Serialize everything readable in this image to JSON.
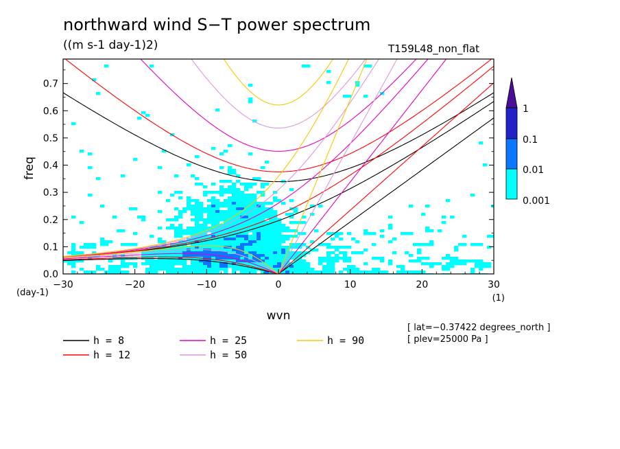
{
  "chart_data": {
    "type": "heatmap",
    "title": "northward wind S−T power spectrum",
    "units": "((m s-1 day-1)2)",
    "run_name": "T159L48_non_flat",
    "xlabel": "wvn",
    "ylabel": "freq",
    "x_unit": "(1)",
    "y_unit": "(day-1)",
    "xlim": [
      -30,
      30
    ],
    "ylim": [
      0,
      0.79
    ],
    "xticks": [
      -30,
      -20,
      -10,
      0,
      10,
      20,
      30
    ],
    "xtick_labels": [
      "−30",
      "−20",
      "−10",
      "0",
      "10",
      "20",
      "30"
    ],
    "yticks": [
      0,
      0.1,
      0.2,
      0.3,
      0.4,
      0.5,
      0.6,
      0.7
    ],
    "ytick_labels": [
      "0.0",
      "0.1",
      "0.2",
      "0.3",
      "0.4",
      "0.5",
      "0.6",
      "0.7"
    ],
    "color_levels": [
      {
        "label": "0.001",
        "color": "#00ffff"
      },
      {
        "label": "0.01",
        "color": "#0d76ff"
      },
      {
        "label": "0.1",
        "color": "#1f23c8"
      },
      {
        "label": "1",
        "color": "#4b0e98"
      }
    ],
    "dispersion_curves": [
      {
        "label": "h =  8",
        "h": 8,
        "color": "#000000"
      },
      {
        "label": "h = 12",
        "h": 12,
        "color": "#ff0000"
      },
      {
        "label": "h = 25",
        "h": 25,
        "color": "#e600c0"
      },
      {
        "label": "h = 50",
        "h": 50,
        "color": "#dd99dd"
      },
      {
        "label": "h = 90",
        "h": 90,
        "color": "#f5c800"
      }
    ],
    "annotations": [
      "[ lat=−0.37422 degrees_north ]",
      "[ plev=25000 Pa ]"
    ]
  }
}
